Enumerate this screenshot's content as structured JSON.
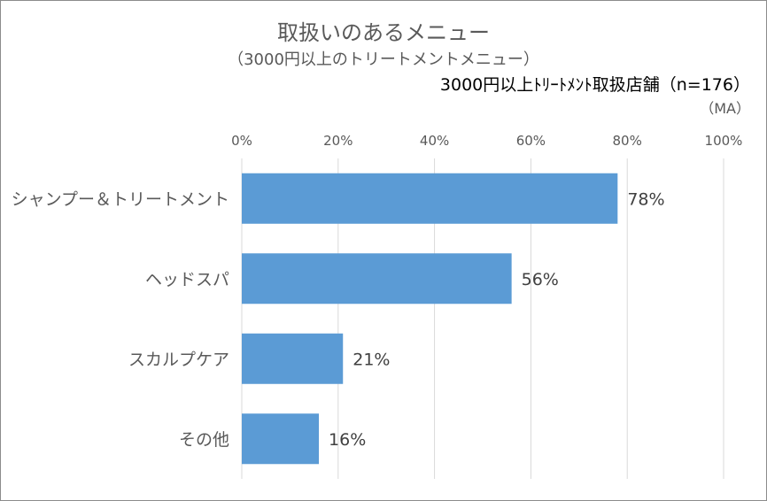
{
  "chart_data": {
    "type": "bar",
    "orientation": "horizontal",
    "title": "取扱いのあるメニュー",
    "subtitle": "（3000円以上のトリートメントメニュー）",
    "base_note": "3000円以上ﾄﾘｰﾄﾒﾝﾄ取扱店舗（n=176）",
    "unit_note": "（MA）",
    "categories": [
      "シャンプー＆トリートメント",
      "ヘッドスパ",
      "スカルプケア",
      "その他"
    ],
    "values": [
      78,
      56,
      21,
      16
    ],
    "data_labels": [
      "78%",
      "56%",
      "21%",
      "16%"
    ],
    "xlim": [
      0,
      100
    ],
    "xticks": [
      0,
      20,
      40,
      60,
      80,
      100
    ],
    "xtick_labels": [
      "0%",
      "20%",
      "40%",
      "60%",
      "80%",
      "100%"
    ],
    "axis_position": "top",
    "grid": true,
    "bar_color": "#5b9bd5",
    "grid_color": "#d9d9d9"
  }
}
